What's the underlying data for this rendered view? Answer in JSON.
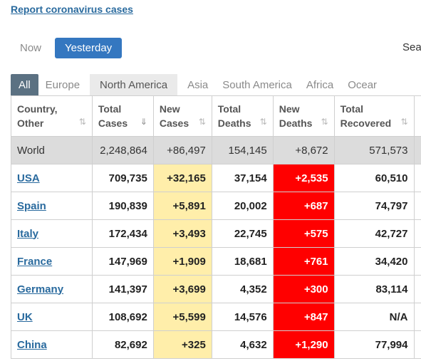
{
  "report_link": "Report coronavirus cases",
  "time_tabs": [
    "Now",
    "Yesterday"
  ],
  "search_label": "Sea",
  "region_tabs": [
    "All",
    "Europe",
    "North America",
    "Asia",
    "South America",
    "Africa",
    "Ocear"
  ],
  "headers": [
    {
      "line1": "Country,",
      "line2": "Other"
    },
    {
      "line1": "Total",
      "line2": "Cases"
    },
    {
      "line1": "New",
      "line2": "Cases"
    },
    {
      "line1": "Total",
      "line2": "Deaths"
    },
    {
      "line1": "New",
      "line2": "Deaths"
    },
    {
      "line1": "Total",
      "line2": "Recovered"
    }
  ],
  "rows": [
    {
      "country": "World",
      "total_cases": "2,248,864",
      "new_cases": "+86,497",
      "total_deaths": "154,145",
      "new_deaths": "+8,672",
      "total_recovered": "571,573"
    },
    {
      "country": "USA",
      "total_cases": "709,735",
      "new_cases": "+32,165",
      "total_deaths": "37,154",
      "new_deaths": "+2,535",
      "total_recovered": "60,510"
    },
    {
      "country": "Spain",
      "total_cases": "190,839",
      "new_cases": "+5,891",
      "total_deaths": "20,002",
      "new_deaths": "+687",
      "total_recovered": "74,797"
    },
    {
      "country": "Italy",
      "total_cases": "172,434",
      "new_cases": "+3,493",
      "total_deaths": "22,745",
      "new_deaths": "+575",
      "total_recovered": "42,727"
    },
    {
      "country": "France",
      "total_cases": "147,969",
      "new_cases": "+1,909",
      "total_deaths": "18,681",
      "new_deaths": "+761",
      "total_recovered": "34,420"
    },
    {
      "country": "Germany",
      "total_cases": "141,397",
      "new_cases": "+3,699",
      "total_deaths": "4,352",
      "new_deaths": "+300",
      "total_recovered": "83,114"
    },
    {
      "country": "UK",
      "total_cases": "108,692",
      "new_cases": "+5,599",
      "total_deaths": "14,576",
      "new_deaths": "+847",
      "total_recovered": "N/A"
    },
    {
      "country": "China",
      "total_cases": "82,692",
      "new_cases": "+325",
      "total_deaths": "4,632",
      "new_deaths": "+1,290",
      "total_recovered": "77,994"
    }
  ],
  "colors": {
    "link": "#296a9e",
    "active_tab": "#3477c0",
    "all_tab": "#5b7182",
    "new_cases_bg": "#ffeeaa",
    "new_deaths_bg": "#ff0000",
    "world_row_bg": "#dcdcdc"
  },
  "icons": {
    "sort": "sort-arrows-icon",
    "sort_active": "sort-desc-icon"
  }
}
